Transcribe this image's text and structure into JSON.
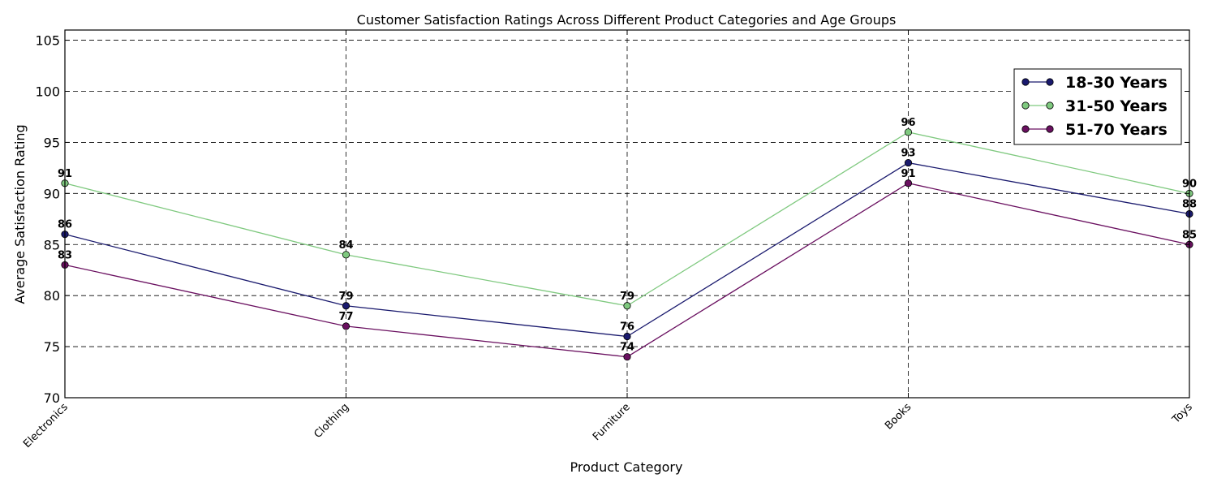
{
  "chart_data": {
    "type": "line",
    "title": "Customer Satisfaction Ratings Across Different Product Categories and Age Groups",
    "xlabel": "Product Category",
    "ylabel": "Average Satisfaction Rating",
    "categories": [
      "Electronics",
      "Clothing",
      "Furniture",
      "Books",
      "Toys"
    ],
    "ylim": [
      70,
      106
    ],
    "yticks": [
      70,
      75,
      80,
      85,
      90,
      95,
      100,
      105
    ],
    "grid": true,
    "legend_position": "top-right",
    "series": [
      {
        "name": "18-30 Years",
        "color": "#1a1a6e",
        "values": [
          86,
          79,
          76,
          93,
          88
        ]
      },
      {
        "name": "31-50 Years",
        "color": "#7fc97f",
        "values": [
          91,
          84,
          79,
          96,
          90
        ]
      },
      {
        "name": "51-70 Years",
        "color": "#6a1060",
        "values": [
          83,
          77,
          74,
          91,
          85
        ]
      }
    ]
  }
}
